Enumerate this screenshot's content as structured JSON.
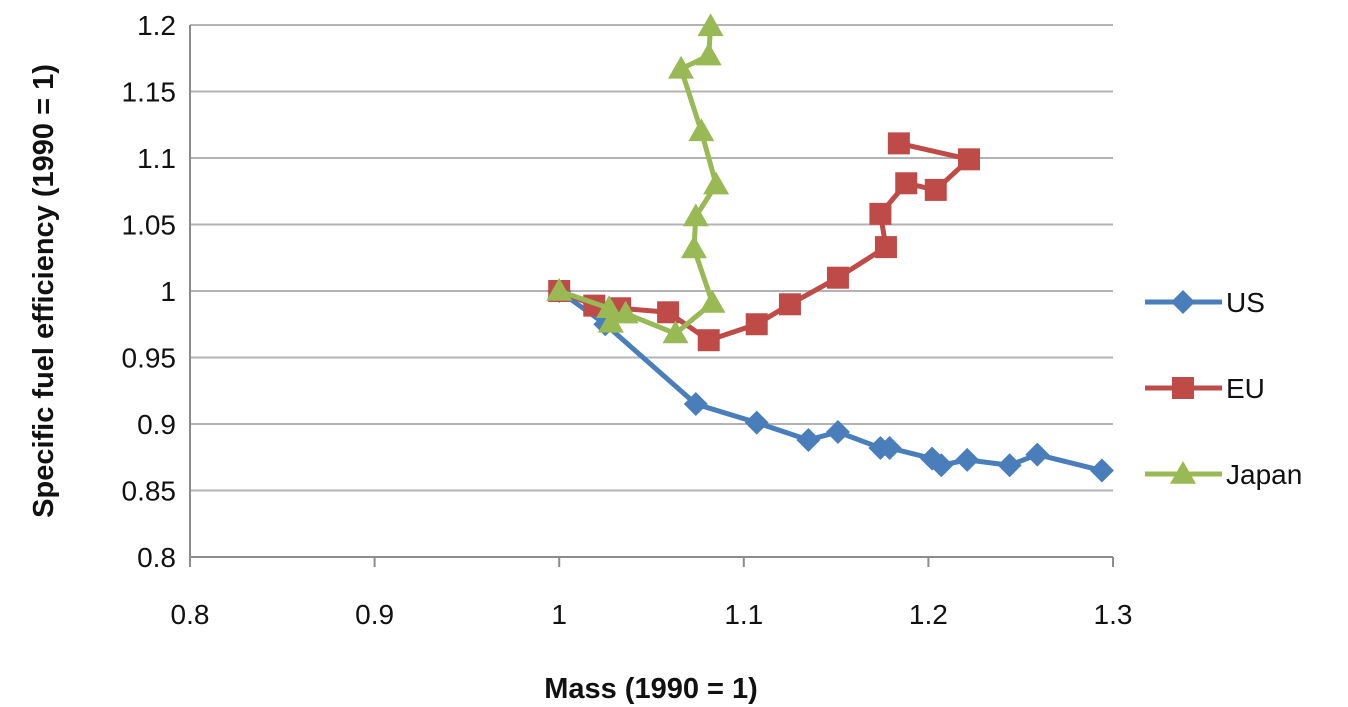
{
  "chart_data": {
    "type": "line",
    "title": "",
    "xlabel": "Mass (1990 = 1)",
    "ylabel": "Specific fuel efficiency (1990 = 1)",
    "xlim": [
      0.8,
      1.3
    ],
    "ylim": [
      0.8,
      1.2
    ],
    "x_ticks": [
      "0.8",
      "0.9",
      "1",
      "1.1",
      "1.2",
      "1.3"
    ],
    "y_ticks": [
      "0.8",
      "0.85",
      "0.9",
      "0.95",
      "1",
      "1.05",
      "1.1",
      "1.15",
      "1.2"
    ],
    "grid": "horizontal",
    "legend_position": "right",
    "series": [
      {
        "name": "US",
        "color": "#4a7ebb",
        "marker": "diamond",
        "points": [
          [
            1.0,
            1.0
          ],
          [
            1.025,
            0.975
          ],
          [
            1.074,
            0.915
          ],
          [
            1.107,
            0.901
          ],
          [
            1.135,
            0.888
          ],
          [
            1.151,
            0.894
          ],
          [
            1.174,
            0.882
          ],
          [
            1.179,
            0.882
          ],
          [
            1.202,
            0.874
          ],
          [
            1.207,
            0.869
          ],
          [
            1.221,
            0.873
          ],
          [
            1.244,
            0.869
          ],
          [
            1.259,
            0.877
          ],
          [
            1.294,
            0.865
          ]
        ]
      },
      {
        "name": "EU",
        "color": "#be4b48",
        "marker": "square",
        "points": [
          [
            1.0,
            1.0
          ],
          [
            1.019,
            0.989
          ],
          [
            1.033,
            0.987
          ],
          [
            1.059,
            0.984
          ],
          [
            1.081,
            0.963
          ],
          [
            1.107,
            0.975
          ],
          [
            1.125,
            0.99
          ],
          [
            1.151,
            1.01
          ],
          [
            1.177,
            1.033
          ],
          [
            1.174,
            1.058
          ],
          [
            1.188,
            1.081
          ],
          [
            1.204,
            1.076
          ],
          [
            1.222,
            1.099
          ],
          [
            1.184,
            1.111
          ]
        ]
      },
      {
        "name": "Japan",
        "color": "#98b954",
        "marker": "triangle",
        "points": [
          [
            1.0,
            1.0
          ],
          [
            1.027,
            0.987
          ],
          [
            1.028,
            0.976
          ],
          [
            1.036,
            0.983
          ],
          [
            1.063,
            0.968
          ],
          [
            1.083,
            0.991
          ],
          [
            1.073,
            1.032
          ],
          [
            1.074,
            1.056
          ],
          [
            1.085,
            1.08
          ],
          [
            1.077,
            1.12
          ],
          [
            1.066,
            1.167
          ],
          [
            1.081,
            1.177
          ],
          [
            1.082,
            1.199
          ]
        ]
      }
    ]
  }
}
